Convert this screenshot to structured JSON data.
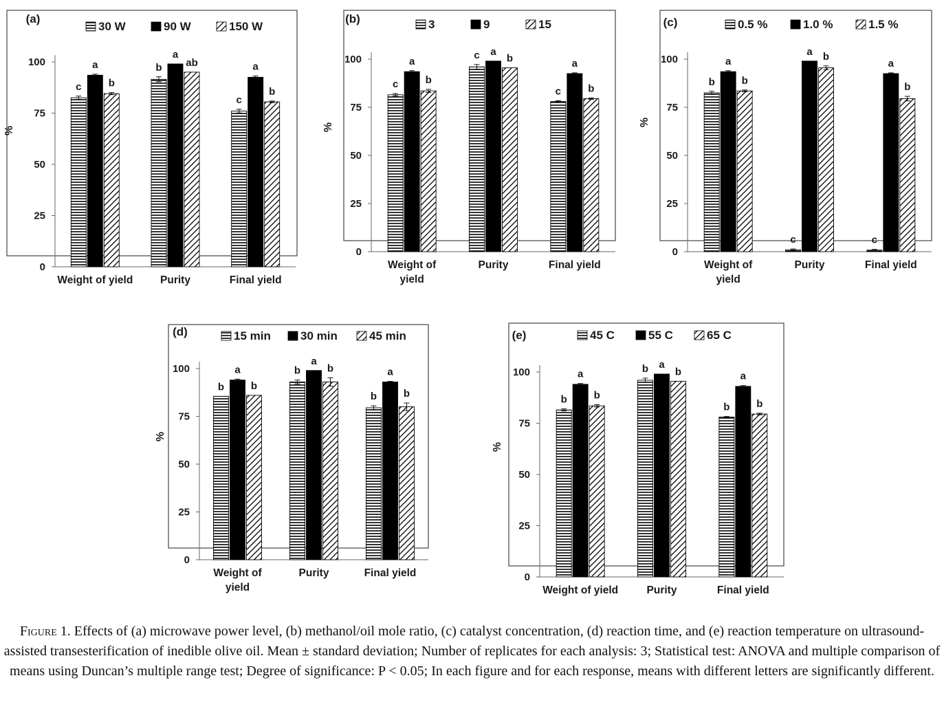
{
  "legend_pattern_key": [
    "horizontal-lines",
    "solid-black",
    "diagonal-hatch"
  ],
  "significance_letters": [
    [
      [
        "c",
        "b",
        "c"
      ],
      [
        "a",
        "a",
        "a"
      ],
      [
        "b",
        "ab",
        "b"
      ]
    ],
    [
      [
        "c",
        "c",
        "c"
      ],
      [
        "a",
        "a",
        "a"
      ],
      [
        "b",
        "b",
        "b"
      ]
    ],
    [
      [
        "b",
        "c",
        "c"
      ],
      [
        "a",
        "a",
        "a"
      ],
      [
        "b",
        "b",
        "b"
      ]
    ],
    [
      [
        "b",
        "b",
        "b"
      ],
      [
        "a",
        "a",
        "a"
      ],
      [
        "b",
        "b",
        "b"
      ]
    ],
    [
      [
        "b",
        "b",
        "b"
      ],
      [
        "a",
        "a",
        "a"
      ],
      [
        "b",
        "b",
        "b"
      ]
    ]
  ],
  "chart_data": [
    {
      "type": "bar",
      "panel_label": "(a)",
      "categories": [
        "Weight of yield",
        "Purity",
        "Final yield"
      ],
      "ylabel": "%",
      "ylim": [
        0,
        100
      ],
      "yticks": [
        0,
        25,
        50,
        75,
        100
      ],
      "series": [
        {
          "name": "30 W",
          "values": [
            82.5,
            91.5,
            76
          ],
          "errors": [
            0.8,
            1.2,
            0.9
          ]
        },
        {
          "name": "90 W",
          "values": [
            93.5,
            99,
            92.5
          ],
          "errors": [
            0.5,
            0,
            0.6
          ]
        },
        {
          "name": "150 W",
          "values": [
            84.5,
            95,
            80.5
          ],
          "errors": [
            0.5,
            0,
            0.4
          ]
        }
      ],
      "grid": false,
      "legend_position": "top"
    },
    {
      "type": "bar",
      "panel_label": "(b)",
      "categories": [
        "Weight of\nyield",
        "Purity",
        "Final yield"
      ],
      "ylabel": "%",
      "ylim": [
        0,
        100
      ],
      "yticks": [
        0,
        25,
        50,
        75,
        100
      ],
      "series": [
        {
          "name": "3",
          "values": [
            81.5,
            96,
            78
          ],
          "errors": [
            0.6,
            1.2,
            0.4
          ]
        },
        {
          "name": "9",
          "values": [
            93.5,
            99,
            92.5
          ],
          "errors": [
            0.5,
            0,
            0.4
          ]
        },
        {
          "name": "15",
          "values": [
            83.5,
            95.5,
            79.5
          ],
          "errors": [
            0.8,
            0,
            0.4
          ]
        }
      ],
      "grid": false,
      "legend_position": "top"
    },
    {
      "type": "bar",
      "panel_label": "(c)",
      "categories": [
        "Weight of\nyield",
        "Purity",
        "Final yield"
      ],
      "ylabel": "%",
      "ylim": [
        0,
        100
      ],
      "yticks": [
        0,
        25,
        50,
        75,
        100
      ],
      "series": [
        {
          "name": "0.5 %",
          "values": [
            82.5,
            1,
            0.8
          ],
          "errors": [
            0.8,
            0.4,
            0.4
          ]
        },
        {
          "name": "1.0 %",
          "values": [
            93.5,
            99,
            92.5
          ],
          "errors": [
            0.5,
            0,
            0.4
          ]
        },
        {
          "name": "1.5 %",
          "values": [
            83.5,
            95.5,
            79.5
          ],
          "errors": [
            0.5,
            1.0,
            1.2
          ]
        }
      ],
      "grid": false,
      "legend_position": "top"
    },
    {
      "type": "bar",
      "panel_label": "(d)",
      "categories": [
        "Weight of\nyield",
        "Purity",
        "Final yield"
      ],
      "ylabel": "%",
      "ylim": [
        0,
        100
      ],
      "yticks": [
        0,
        25,
        50,
        75,
        100
      ],
      "series": [
        {
          "name": "15 min",
          "values": [
            85.5,
            93,
            79.5
          ],
          "errors": [
            0,
            1.0,
            1.0
          ]
        },
        {
          "name": "30 min",
          "values": [
            94,
            99,
            93
          ],
          "errors": [
            0.5,
            0,
            0.3
          ]
        },
        {
          "name": "45 min",
          "values": [
            86,
            93,
            80
          ],
          "errors": [
            0,
            2.2,
            2.0
          ]
        }
      ],
      "grid": false,
      "legend_position": "top"
    },
    {
      "type": "bar",
      "panel_label": "(e)",
      "categories": [
        "Weight of yield",
        "Purity",
        "Final yield"
      ],
      "ylabel": "%",
      "ylim": [
        0,
        100
      ],
      "yticks": [
        0,
        25,
        50,
        75,
        100
      ],
      "series": [
        {
          "name": "45 C",
          "values": [
            81.5,
            96,
            78
          ],
          "errors": [
            0.5,
            1.0,
            0.3
          ]
        },
        {
          "name": "55 C",
          "values": [
            94,
            99,
            93
          ],
          "errors": [
            0.4,
            0,
            0.4
          ]
        },
        {
          "name": "65 C",
          "values": [
            83.5,
            95.5,
            79.5
          ],
          "errors": [
            0.6,
            0,
            0.4
          ]
        }
      ],
      "grid": false,
      "legend_position": "top"
    }
  ],
  "caption": {
    "label": "Figure 1.",
    "text": "Effects of (a) microwave power level, (b) methanol/oil mole ratio, (c) catalyst concentration, (d) reaction time, and (e) reaction temperature on ultrasound-assisted transesterification of inedible olive oil. Mean ± standard deviation; Number of replicates for each analysis: 3; Statistical test: ANOVA and multiple comparison of means using Duncan’s multiple range test; Degree of significance: P < 0.05; In each figure and for each response, means with different letters are significantly different."
  }
}
